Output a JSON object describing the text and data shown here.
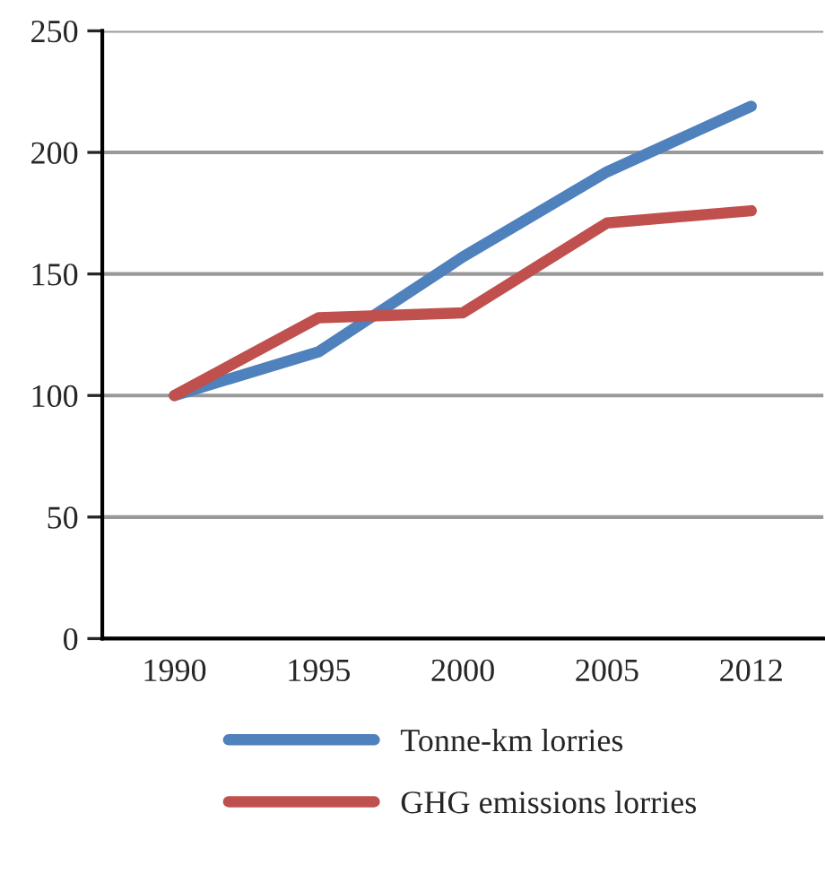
{
  "chart_data": {
    "type": "line",
    "categories": [
      "1990",
      "1995",
      "2000",
      "2005",
      "2012"
    ],
    "series": [
      {
        "name": "Tonne-km lorries",
        "color": "#4f81bd",
        "values": [
          100,
          118,
          157,
          192,
          219
        ]
      },
      {
        "name": "GHG emissions lorries",
        "color": "#c0504d",
        "values": [
          100,
          132,
          134,
          171,
          176
        ]
      }
    ],
    "ylim": [
      0,
      250
    ],
    "yticks": [
      0,
      50,
      100,
      150,
      200,
      250
    ],
    "grid": "y",
    "legend": "bottom",
    "marker": "none",
    "line_style": "solid"
  }
}
